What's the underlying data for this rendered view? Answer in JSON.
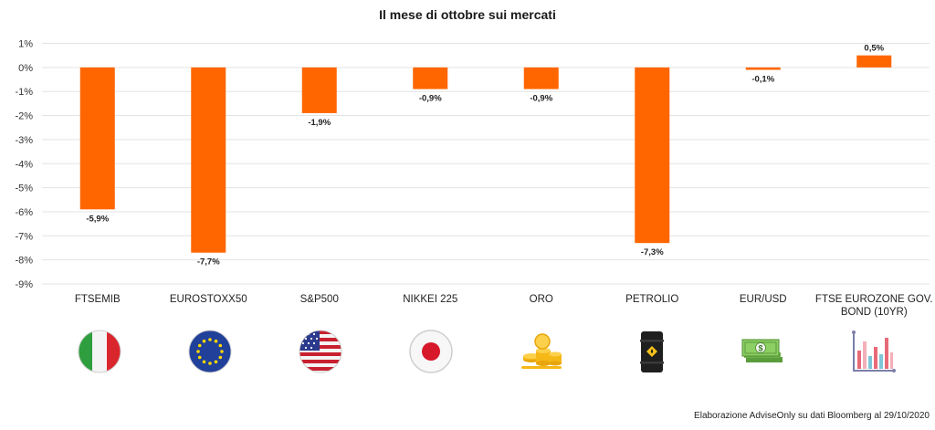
{
  "chart_data": {
    "type": "bar",
    "title": "Il mese di ottobre sui mercati",
    "xlabel": "",
    "ylabel": "",
    "categories": [
      "FTSEMIB",
      "EUROSTOXX50",
      "S&P500",
      "NIKKEI 225",
      "ORO",
      "PETROLIO",
      "EUR/USD",
      "FTSE EUROZONE GOV. BOND (10YR)"
    ],
    "category_lines": [
      [
        "FTSEMIB"
      ],
      [
        "EUROSTOXX50"
      ],
      [
        "S&P500"
      ],
      [
        "NIKKEI 225"
      ],
      [
        "ORO"
      ],
      [
        "PETROLIO"
      ],
      [
        "EUR/USD"
      ],
      [
        "FTSE EUROZONE GOV.",
        "BOND (10YR)"
      ]
    ],
    "values": [
      -5.9,
      -7.7,
      -1.9,
      -0.9,
      -0.9,
      -7.3,
      -0.1,
      0.5
    ],
    "value_labels": [
      "-5,9%",
      "-7,7%",
      "-1,9%",
      "-0,9%",
      "-0,9%",
      "-7,3%",
      "-0,1%",
      "0,5%"
    ],
    "ylim": [
      -9,
      1
    ],
    "yticks": [
      1,
      0,
      -1,
      -2,
      -3,
      -4,
      -5,
      -6,
      -7,
      -8,
      -9
    ],
    "ytick_labels": [
      "1%",
      "0%",
      "-1%",
      "-2%",
      "-3%",
      "-4%",
      "-5%",
      "-6%",
      "-7%",
      "-8%",
      "-9%"
    ],
    "grid": true,
    "legend": "none",
    "bar_color": "#ff6600"
  },
  "icons": [
    "italy-flag-icon",
    "eu-flag-icon",
    "usa-flag-icon",
    "japan-flag-icon",
    "gold-coins-icon",
    "oil-barrel-icon",
    "dollar-bill-icon",
    "bar-chart-icon"
  ],
  "source_note": "Elaborazione AdviseOnly su dati Bloomberg al 29/10/2020"
}
